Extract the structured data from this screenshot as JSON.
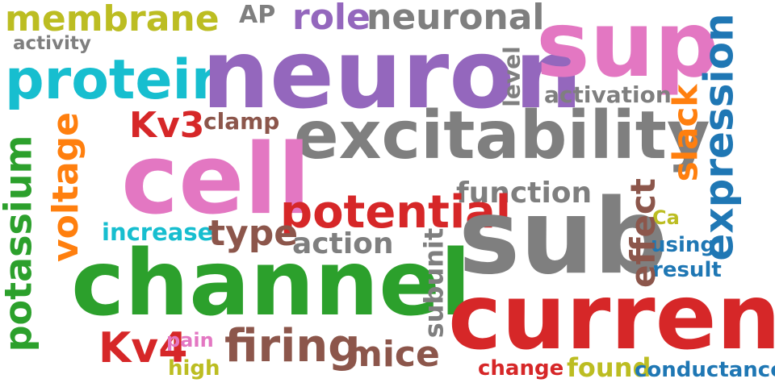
{
  "words": {
    "membrane": {
      "text": "membrane",
      "color": "#bcbd22"
    },
    "activity": {
      "text": "activity",
      "color": "#7f7f7f"
    },
    "ap": {
      "text": "AP",
      "color": "#7f7f7f"
    },
    "role": {
      "text": "role",
      "color": "#9467bd"
    },
    "neuronal": {
      "text": "neuronal",
      "color": "#7f7f7f"
    },
    "protein": {
      "text": "protein",
      "color": "#17becf"
    },
    "neuron": {
      "text": "neuron",
      "color": "#9467bd"
    },
    "sup": {
      "text": "sup",
      "color": "#e377c2"
    },
    "level": {
      "text": "level",
      "color": "#7f7f7f"
    },
    "activation": {
      "text": "activation",
      "color": "#7f7f7f"
    },
    "expression": {
      "text": "expression",
      "color": "#1f77b4"
    },
    "kv3": {
      "text": "Kv3",
      "color": "#d62728"
    },
    "clamp": {
      "text": "clamp",
      "color": "#8c564b"
    },
    "excitability": {
      "text": "excitability",
      "color": "#7f7f7f"
    },
    "slack": {
      "text": "slack",
      "color": "#ff7f0e"
    },
    "potassium": {
      "text": "potassium",
      "color": "#2ca02c"
    },
    "voltage": {
      "text": "voltage",
      "color": "#ff7f0e"
    },
    "cell": {
      "text": "cell",
      "color": "#e377c2"
    },
    "function": {
      "text": "function",
      "color": "#7f7f7f"
    },
    "potential": {
      "text": "potential",
      "color": "#d62728"
    },
    "effect": {
      "text": "effect",
      "color": "#8c564b"
    },
    "ca": {
      "text": "Ca",
      "color": "#bcbd22"
    },
    "increase": {
      "text": "increase",
      "color": "#17becf"
    },
    "type": {
      "text": "type",
      "color": "#8c564b"
    },
    "action": {
      "text": "action",
      "color": "#7f7f7f"
    },
    "sub": {
      "text": "sub",
      "color": "#7f7f7f"
    },
    "using": {
      "text": "using",
      "color": "#1f77b4"
    },
    "result": {
      "text": "result",
      "color": "#1f77b4"
    },
    "channel": {
      "text": "channel",
      "color": "#2ca02c"
    },
    "subunit": {
      "text": "subunit",
      "color": "#7f7f7f"
    },
    "current": {
      "text": "current",
      "color": "#d62728"
    },
    "kv4": {
      "text": "Kv4",
      "color": "#d62728"
    },
    "pain": {
      "text": "pain",
      "color": "#e377c2"
    },
    "firing": {
      "text": "firing",
      "color": "#8c564b"
    },
    "mice": {
      "text": "mice",
      "color": "#8c564b"
    },
    "high": {
      "text": "high",
      "color": "#bcbd22"
    },
    "change": {
      "text": "change",
      "color": "#d62728"
    },
    "found": {
      "text": "found",
      "color": "#bcbd22"
    },
    "conductance": {
      "text": "conductance",
      "color": "#1f77b4"
    }
  }
}
